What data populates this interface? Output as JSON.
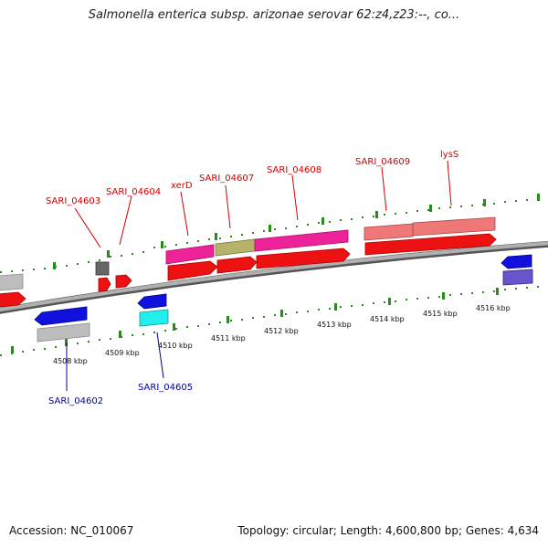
{
  "title": "Salmonella enterica subsp. arizonae serovar 62:z4,z23:--, co...",
  "footer": {
    "accession": "Accession: NC_010067",
    "summary": "Topology: circular; Length: 4,600,800 bp; Genes: 4,634"
  },
  "colors": {
    "forward_label": "#cc0000",
    "reverse_label": "#000099",
    "tick": "#2a8a1e",
    "backbone": "#8a8a8a"
  },
  "axis": {
    "tick_labels": [
      "4508 kbp",
      "4509 kbp",
      "4510 kbp",
      "4511 kbp",
      "4512 kbp",
      "4513 kbp",
      "4514 kbp",
      "4515 kbp",
      "4516 kbp"
    ]
  },
  "gene_labels": {
    "forward": [
      "SARI_04603",
      "SARI_04604",
      "xerD",
      "SARI_04607",
      "SARI_04608",
      "SARI_04609",
      "lysS"
    ],
    "reverse": [
      "SARI_04602",
      "SARI_04605"
    ]
  }
}
